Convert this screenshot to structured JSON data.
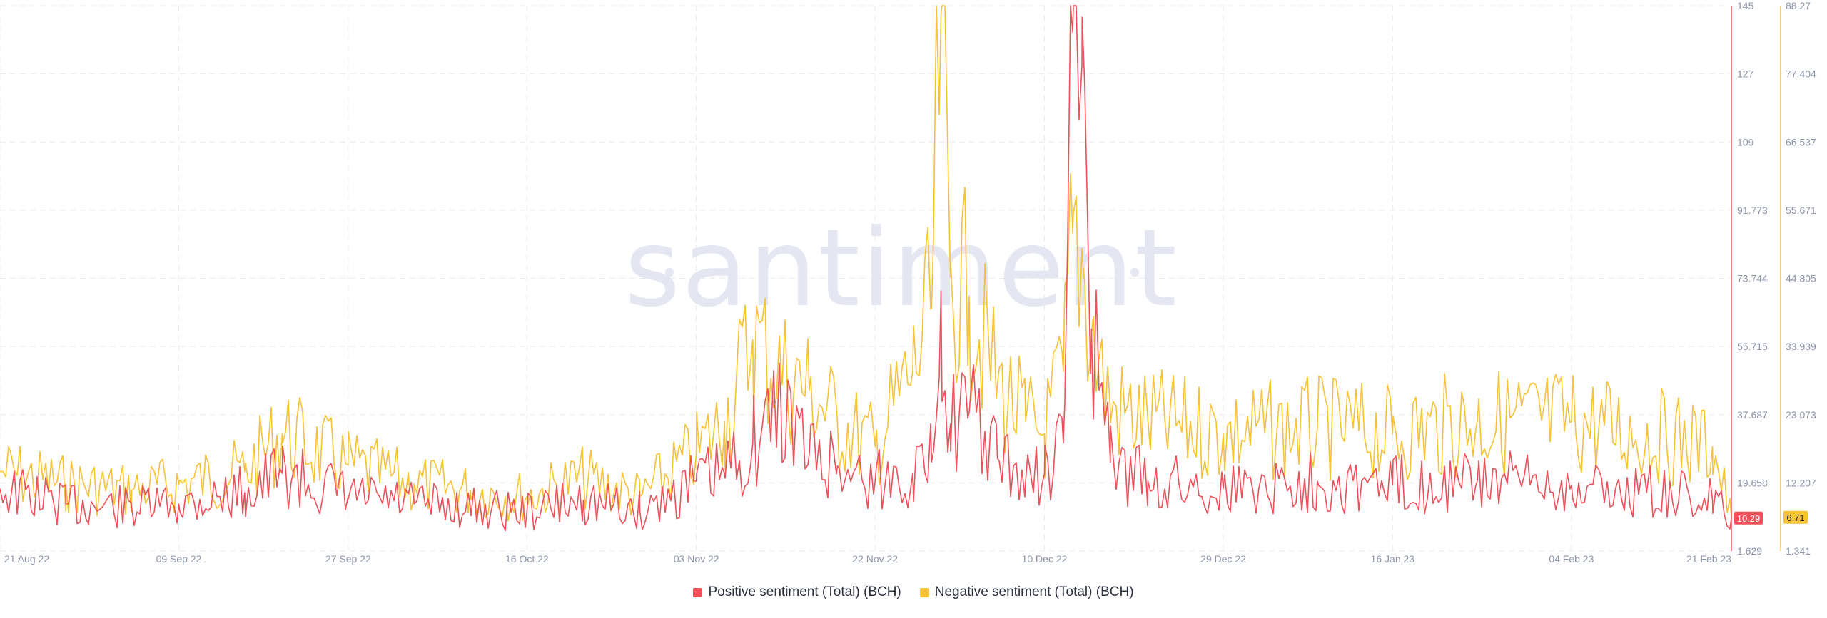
{
  "chart_data": {
    "type": "line",
    "watermark": "santiment",
    "x_ticks": [
      "21 Aug 22",
      "09 Sep 22",
      "27 Sep 22",
      "16 Oct 22",
      "03 Nov 22",
      "22 Nov 22",
      "10 Dec 22",
      "29 Dec 22",
      "16 Jan 23",
      "04 Feb 23",
      "21 Feb 23"
    ],
    "y_axes": {
      "left": {
        "ticks": [
          "145",
          "127",
          "109",
          "91.773",
          "73.744",
          "55.715",
          "37.687",
          "19.658",
          "1.629"
        ],
        "min": 1.629,
        "max": 145,
        "color": "#f0505a"
      },
      "right": {
        "ticks": [
          "88.27",
          "77.404",
          "66.537",
          "55.671",
          "44.805",
          "33.939",
          "23.073",
          "12.207",
          "1.341"
        ],
        "min": 1.341,
        "max": 88.27,
        "color": "#f7c233"
      }
    },
    "current_values": {
      "positive": "10.29",
      "negative": "6.71"
    },
    "grid": true,
    "legend_position": "bottom-center",
    "series": [
      {
        "name": "Positive sentiment (Total) (BCH)",
        "color": "#f0505a",
        "axis": "left",
        "points": [
          [
            "21 Aug 22",
            18
          ],
          [
            "28 Aug 22",
            14
          ],
          [
            "04 Sep 22",
            13
          ],
          [
            "09 Sep 22",
            14
          ],
          [
            "16 Sep 22",
            17
          ],
          [
            "20 Sep 22",
            22
          ],
          [
            "27 Sep 22",
            16
          ],
          [
            "04 Oct 22",
            14
          ],
          [
            "10 Oct 22",
            13
          ],
          [
            "16 Oct 22",
            12
          ],
          [
            "22 Oct 22",
            15
          ],
          [
            "28 Oct 22",
            12
          ],
          [
            "03 Nov 22",
            20
          ],
          [
            "06 Nov 22",
            22
          ],
          [
            "09 Nov 22",
            30
          ],
          [
            "12 Nov 22",
            40
          ],
          [
            "15 Nov 22",
            27
          ],
          [
            "18 Nov 22",
            24
          ],
          [
            "22 Nov 22",
            20
          ],
          [
            "26 Nov 22",
            22
          ],
          [
            "28 Nov 22",
            25
          ],
          [
            "29 Nov 22",
            70
          ],
          [
            "30 Nov 22",
            35
          ],
          [
            "02 Dec 22",
            38
          ],
          [
            "05 Dec 22",
            26
          ],
          [
            "08 Dec 22",
            20
          ],
          [
            "10 Dec 22",
            22
          ],
          [
            "12 Dec 22",
            30
          ],
          [
            "13 Dec 22",
            138
          ],
          [
            "14 Dec 22",
            142
          ],
          [
            "15 Dec 22",
            60
          ],
          [
            "17 Dec 22",
            25
          ],
          [
            "21 Dec 22",
            20
          ],
          [
            "29 Dec 22",
            18
          ],
          [
            "08 Jan 23",
            20
          ],
          [
            "16 Jan 23",
            19
          ],
          [
            "25 Jan 23",
            20
          ],
          [
            "04 Feb 23",
            19
          ],
          [
            "12 Feb 23",
            17
          ],
          [
            "19 Feb 23",
            15
          ],
          [
            "21 Feb 23",
            10.29
          ]
        ]
      },
      {
        "name": "Negative sentiment (Total) (BCH)",
        "color": "#f7c233",
        "axis": "right",
        "points": [
          [
            "21 Aug 22",
            14
          ],
          [
            "28 Aug 22",
            12
          ],
          [
            "04 Sep 22",
            11
          ],
          [
            "09 Sep 22",
            12
          ],
          [
            "16 Sep 22",
            14
          ],
          [
            "20 Sep 22",
            20
          ],
          [
            "27 Sep 22",
            15
          ],
          [
            "04 Oct 22",
            12
          ],
          [
            "10 Oct 22",
            11
          ],
          [
            "16 Oct 22",
            10
          ],
          [
            "22 Oct 22",
            13
          ],
          [
            "28 Oct 22",
            10
          ],
          [
            "03 Nov 22",
            17
          ],
          [
            "06 Nov 22",
            22
          ],
          [
            "09 Nov 22",
            35
          ],
          [
            "12 Nov 22",
            30
          ],
          [
            "15 Nov 22",
            27
          ],
          [
            "18 Nov 22",
            22
          ],
          [
            "22 Nov 22",
            18
          ],
          [
            "26 Nov 22",
            30
          ],
          [
            "28 Nov 22",
            40
          ],
          [
            "29 Nov 22",
            87
          ],
          [
            "30 Nov 22",
            45
          ],
          [
            "02 Dec 22",
            42
          ],
          [
            "05 Dec 22",
            28
          ],
          [
            "08 Dec 22",
            22
          ],
          [
            "10 Dec 22",
            20
          ],
          [
            "12 Dec 22",
            30
          ],
          [
            "13 Dec 22",
            52
          ],
          [
            "14 Dec 22",
            48
          ],
          [
            "15 Dec 22",
            36
          ],
          [
            "17 Dec 22",
            24
          ],
          [
            "21 Dec 22",
            22
          ],
          [
            "29 Dec 22",
            20
          ],
          [
            "08 Jan 23",
            21
          ],
          [
            "16 Jan 23",
            20
          ],
          [
            "25 Jan 23",
            22
          ],
          [
            "04 Feb 23",
            22
          ],
          [
            "12 Feb 23",
            20
          ],
          [
            "19 Feb 23",
            18
          ],
          [
            "21 Feb 23",
            6.71
          ]
        ]
      }
    ]
  }
}
